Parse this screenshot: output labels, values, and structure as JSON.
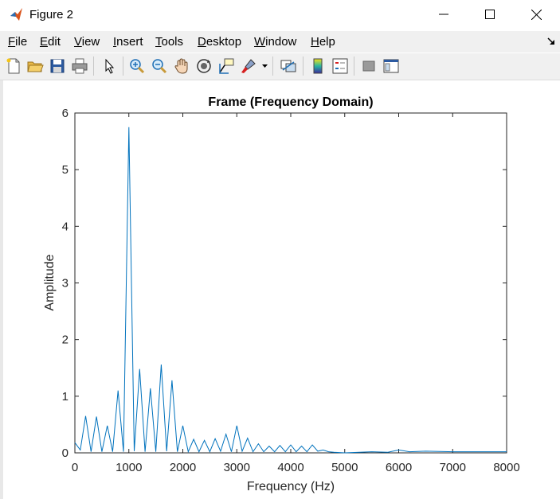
{
  "window": {
    "title": "Figure 2",
    "icon": "matlab-icon",
    "controls": [
      "minimize-icon",
      "maximize-icon",
      "close-icon"
    ]
  },
  "menubar": {
    "items": [
      {
        "label": "File",
        "mnemonic": "F",
        "rest": "ile"
      },
      {
        "label": "Edit",
        "mnemonic": "E",
        "rest": "dit"
      },
      {
        "label": "View",
        "mnemonic": "V",
        "rest": "iew"
      },
      {
        "label": "Insert",
        "mnemonic": "I",
        "rest": "nsert"
      },
      {
        "label": "Tools",
        "mnemonic": "T",
        "rest": "ools"
      },
      {
        "label": "Desktop",
        "mnemonic": "D",
        "rest": "esktop"
      },
      {
        "label": "Window",
        "mnemonic": "W",
        "rest": "indow"
      },
      {
        "label": "Help",
        "mnemonic": "H",
        "rest": "elp"
      }
    ]
  },
  "toolbar": {
    "buttons": [
      "new-figure-icon",
      "open-file-icon",
      "save-icon",
      "print-icon",
      "pointer-icon",
      "zoom-in-icon",
      "zoom-out-icon",
      "pan-icon",
      "rotate-icon",
      "data-cursor-icon",
      "brush-icon",
      "link-plot-icon",
      "colorbar-icon",
      "legend-icon",
      "hide-plot-tools-icon",
      "show-plot-tools-icon"
    ]
  },
  "chart_data": {
    "type": "line",
    "title": "Frame (Frequency Domain)",
    "xlabel": "Frequency (Hz)",
    "ylabel": "Amplitude",
    "xlim": [
      0,
      8000
    ],
    "ylim": [
      0,
      6
    ],
    "xticks": [
      0,
      1000,
      2000,
      3000,
      4000,
      5000,
      6000,
      7000,
      8000
    ],
    "yticks": [
      0,
      1,
      2,
      3,
      4,
      5,
      6
    ],
    "grid": false,
    "line_color": "#0072bd",
    "series": [
      {
        "x": [
          0,
          100,
          200,
          300,
          400,
          500,
          600,
          700,
          800,
          900,
          1000,
          1100,
          1200,
          1300,
          1400,
          1500,
          1600,
          1700,
          1800,
          1900,
          2000,
          2100,
          2200,
          2300,
          2400,
          2500,
          2600,
          2700,
          2800,
          2900,
          3000,
          3100,
          3200,
          3300,
          3400,
          3500,
          3600,
          3700,
          3800,
          3900,
          4000,
          4100,
          4200,
          4300,
          4400,
          4500,
          4600,
          4700,
          4800,
          5000,
          5500,
          5800,
          6000,
          6200,
          6500,
          7000,
          7500,
          8000
        ],
        "y": [
          0.18,
          0.05,
          0.65,
          0.02,
          0.64,
          0.02,
          0.48,
          0.02,
          1.1,
          0.02,
          5.75,
          0.03,
          1.48,
          0.02,
          1.14,
          0.02,
          1.56,
          0.03,
          1.28,
          0.02,
          0.48,
          0.02,
          0.24,
          0.02,
          0.22,
          0.02,
          0.25,
          0.03,
          0.33,
          0.02,
          0.48,
          0.03,
          0.26,
          0.02,
          0.16,
          0.02,
          0.12,
          0.02,
          0.13,
          0.02,
          0.14,
          0.02,
          0.12,
          0.02,
          0.14,
          0.03,
          0.05,
          0.02,
          0.01,
          0.0,
          0.02,
          0.01,
          0.05,
          0.02,
          0.03,
          0.02,
          0.02,
          0.02
        ]
      }
    ]
  }
}
